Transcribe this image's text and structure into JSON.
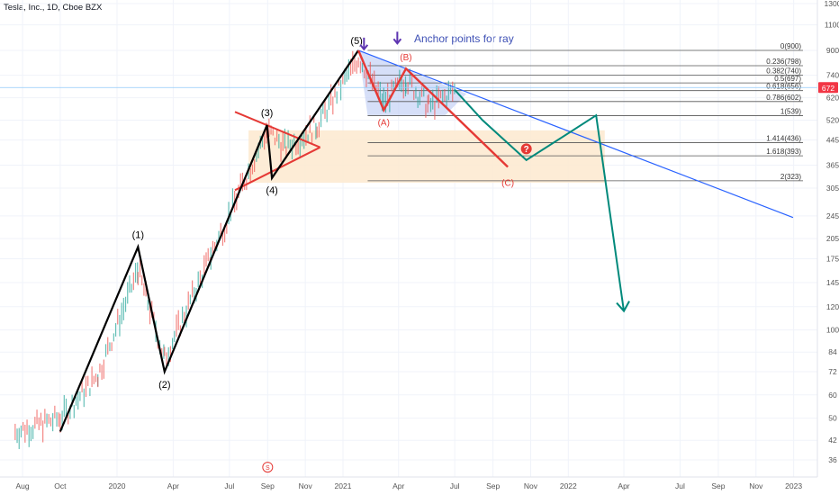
{
  "header": {
    "symbol_title": "Tesla, Inc., 1D, Cboe BZX"
  },
  "annotations": {
    "anchor_text": "Anchor points for ray"
  },
  "colors": {
    "elliott_wave": "#000000",
    "correction": "#e53935",
    "projection": "#00897b",
    "ray": "#2962ff",
    "fib_band": "#c5d1f5",
    "consolidation_zone": "#fde9cf",
    "marker": "#e53935",
    "arrow": "#5e35b1",
    "price_tag": "#f23645"
  },
  "chart_data": {
    "type": "line",
    "y_axis": {
      "scale": "log",
      "ticks": [
        1300,
        1100,
        900,
        740,
        620,
        520,
        445,
        365,
        305,
        245,
        205,
        175,
        145,
        120,
        100,
        84,
        72,
        60,
        50,
        42,
        36
      ],
      "last_price_label": "672"
    },
    "x_axis": {
      "ticks": [
        {
          "label": "Aug",
          "date": "2019-08-01"
        },
        {
          "label": "Oct",
          "date": "2019-10-01"
        },
        {
          "label": "2020",
          "date": "2020-01-01"
        },
        {
          "label": "Apr",
          "date": "2020-04-01"
        },
        {
          "label": "Jul",
          "date": "2020-07-01"
        },
        {
          "label": "Sep",
          "date": "2020-09-01"
        },
        {
          "label": "Nov",
          "date": "2020-11-01"
        },
        {
          "label": "2021",
          "date": "2021-01-01"
        },
        {
          "label": "Apr",
          "date": "2021-04-01"
        },
        {
          "label": "Jul",
          "date": "2021-07-01"
        },
        {
          "label": "Sep",
          "date": "2021-09-01"
        },
        {
          "label": "Nov",
          "date": "2021-11-01"
        },
        {
          "label": "2022",
          "date": "2022-01-01"
        },
        {
          "label": "Apr",
          "date": "2022-04-01"
        },
        {
          "label": "Jul",
          "date": "2022-07-01"
        },
        {
          "label": "Sep",
          "date": "2022-09-01"
        },
        {
          "label": "Nov",
          "date": "2022-11-01"
        },
        {
          "label": "2023",
          "date": "2023-01-01"
        }
      ]
    },
    "impulse_wave": [
      {
        "date": "2019-10-01",
        "price": 45,
        "label": ""
      },
      {
        "date": "2020-02-04",
        "price": 192,
        "label": "(1)"
      },
      {
        "date": "2020-03-18",
        "price": 72,
        "label": "(2)"
      },
      {
        "date": "2020-08-31",
        "price": 500,
        "label": "(3)"
      },
      {
        "date": "2020-09-08",
        "price": 330,
        "label": "(4)"
      },
      {
        "date": "2021-01-26",
        "price": 900,
        "label": "(5)"
      }
    ],
    "correction_wave": [
      {
        "date": "2021-01-26",
        "price": 900,
        "label": ""
      },
      {
        "date": "2021-03-08",
        "price": 563,
        "label": "(A)"
      },
      {
        "date": "2021-04-13",
        "price": 780,
        "label": "(B)"
      },
      {
        "date": "2021-09-25",
        "price": 360,
        "label": "(C)"
      }
    ],
    "projection_path": [
      {
        "date": "2021-07-01",
        "price": 660
      },
      {
        "date": "2021-08-15",
        "price": 520
      },
      {
        "date": "2021-10-25",
        "price": 380
      },
      {
        "date": "2022-02-15",
        "price": 540
      },
      {
        "date": "2022-04-01",
        "price": 116
      }
    ],
    "ray": [
      {
        "date": "2021-01-26",
        "price": 900
      },
      {
        "date": "2022-12-31",
        "price": 242
      }
    ],
    "fibonacci_levels": [
      {
        "label": "0(900)",
        "price": 900
      },
      {
        "label": "0.236(798)",
        "price": 798
      },
      {
        "label": "0.382(740)",
        "price": 740
      },
      {
        "label": "0.5(697)",
        "price": 697
      },
      {
        "label": "0.618(656)",
        "price": 656
      },
      {
        "label": "0.786(602)",
        "price": 602
      },
      {
        "label": "1(539)",
        "price": 539
      },
      {
        "label": "1.414(436)",
        "price": 436
      },
      {
        "label": "1.618(393)",
        "price": 393
      },
      {
        "label": "2(323)",
        "price": 323
      }
    ],
    "consolidation_zone": {
      "start": "2020-08-01",
      "end": "2022-03-01",
      "top": 480,
      "bottom": 318
    },
    "triangle": {
      "upper": [
        {
          "date": "2020-07-10",
          "price": 555
        },
        {
          "date": "2020-11-25",
          "price": 420
        }
      ],
      "lower": [
        {
          "date": "2020-07-10",
          "price": 300
        },
        {
          "date": "2020-11-25",
          "price": 420
        }
      ]
    },
    "markers": [
      {
        "type": "question",
        "date": "2021-10-25",
        "price": 415,
        "text": "?"
      },
      {
        "type": "circle",
        "date": "2020-09-01",
        "price": 34,
        "text": "S"
      }
    ],
    "arrows": [
      {
        "date": "2021-02-04",
        "price": 940
      },
      {
        "date": "2021-03-30",
        "price": 985
      }
    ]
  }
}
